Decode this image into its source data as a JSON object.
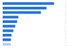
{
  "chart_data": {
    "type": "bar",
    "orientation": "horizontal",
    "categories": [
      null,
      null,
      null,
      null,
      null,
      null,
      null,
      null,
      null,
      null
    ],
    "values": [
      82,
      70,
      61,
      25,
      23,
      20,
      17,
      14,
      13,
      13
    ],
    "colors": [
      "#2876dd",
      "#2876dd",
      "#2876dd",
      "#2876dd",
      "#2876dd",
      "#2876dd",
      "#2876dd",
      "#2876dd",
      "#2876dd",
      "#b9cfef"
    ],
    "xlim": [
      0,
      100
    ],
    "xticks": [
      0,
      25,
      50,
      75,
      100
    ],
    "grid": true,
    "tick_labels": false
  }
}
